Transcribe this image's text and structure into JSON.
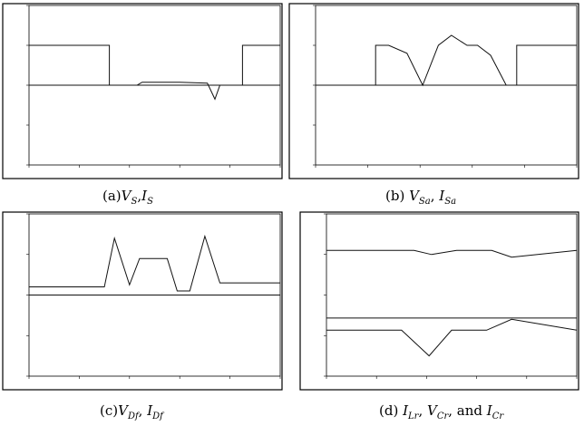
{
  "figure": {
    "captions": {
      "a": {
        "prefix": "(a)",
        "v": "V",
        "v_sub": "S",
        "sep": ",",
        "i": "I",
        "i_sub": "S"
      },
      "b": {
        "prefix": "(b)  ",
        "v": "V",
        "v_sub": "Sa",
        "sep": ",  ",
        "i": "I",
        "i_sub": "Sa"
      },
      "c": {
        "prefix": "(c)",
        "v": "V",
        "v_sub": "Df",
        "sep": ",  ",
        "i": "I",
        "i_sub": "Df"
      },
      "d": {
        "prefix": "(d)  ",
        "i1": "I",
        "i1_sub": "Lr",
        "sep1": ",  ",
        "v": "V",
        "v_sub": "Cr",
        "sep2": ",  and  ",
        "i2": "I",
        "i2_sub": "Cr"
      }
    },
    "colors": {
      "frame": "#000000",
      "trace": "#111111",
      "background": "#ffffff"
    }
  },
  "chart_data": [
    {
      "type": "line",
      "panel": "a",
      "x_range": [
        0,
        10
      ],
      "y_range": [
        -4,
        4
      ],
      "grid": false,
      "series": [
        {
          "values": [
            [
              0,
              2
            ],
            [
              3.2,
              2
            ],
            [
              3.2,
              0
            ],
            [
              8.5,
              0
            ],
            [
              8.5,
              2
            ],
            [
              10,
              2
            ]
          ]
        },
        {
          "values": [
            [
              0,
              0
            ],
            [
              4.3,
              0
            ],
            [
              4.5,
              0.15
            ],
            [
              6.0,
              0.15
            ],
            [
              7.1,
              0.1
            ],
            [
              7.4,
              -0.7
            ],
            [
              7.6,
              0
            ],
            [
              10,
              0
            ]
          ]
        }
      ]
    },
    {
      "type": "line",
      "panel": "b",
      "x_range": [
        0,
        10
      ],
      "y_range": [
        -4,
        4
      ],
      "grid": false,
      "series": [
        {
          "values": [
            [
              0,
              0
            ],
            [
              2.3,
              0
            ],
            [
              2.3,
              2
            ],
            [
              2.8,
              2
            ],
            [
              3.5,
              1.6
            ],
            [
              4.1,
              0
            ],
            [
              4.7,
              2
            ],
            [
              5.2,
              2.5
            ],
            [
              5.8,
              2
            ],
            [
              6.2,
              2
            ],
            [
              6.7,
              1.5
            ],
            [
              7.3,
              0
            ],
            [
              7.7,
              0
            ],
            [
              7.7,
              2
            ],
            [
              10,
              2
            ]
          ]
        },
        {
          "values": [
            [
              0,
              0
            ],
            [
              10,
              0
            ]
          ]
        }
      ]
    },
    {
      "type": "line",
      "panel": "c",
      "x_range": [
        0,
        10
      ],
      "y_range": [
        -4,
        4
      ],
      "grid": false,
      "series": [
        {
          "values": [
            [
              0,
              0.4
            ],
            [
              2.3,
              0.4
            ],
            [
              3.0,
              0.4
            ],
            [
              3.4,
              2.8
            ],
            [
              4.0,
              0.5
            ],
            [
              4.4,
              1.8
            ],
            [
              5.5,
              1.8
            ],
            [
              5.9,
              0.2
            ],
            [
              6.4,
              0.2
            ],
            [
              7.0,
              2.9
            ],
            [
              7.6,
              0.6
            ],
            [
              10,
              0.6
            ]
          ]
        },
        {
          "values": [
            [
              0,
              0
            ],
            [
              10,
              0
            ]
          ]
        }
      ]
    },
    {
      "type": "line",
      "panel": "d",
      "x_range": [
        0,
        10
      ],
      "y_range": [
        -6,
        6
      ],
      "grid": false,
      "series": [
        {
          "values": [
            [
              0,
              3.3
            ],
            [
              3.5,
              3.3
            ],
            [
              4.2,
              3.0
            ],
            [
              5.2,
              3.3
            ],
            [
              6.6,
              3.3
            ],
            [
              7.4,
              2.8
            ],
            [
              10,
              3.3
            ]
          ]
        },
        {
          "values": [
            [
              0,
              -1.7
            ],
            [
              10,
              -1.7
            ]
          ]
        },
        {
          "values": [
            [
              0,
              -2.6
            ],
            [
              3.0,
              -2.6
            ],
            [
              4.1,
              -4.5
            ],
            [
              5.0,
              -2.6
            ],
            [
              6.4,
              -2.6
            ],
            [
              7.4,
              -1.8
            ],
            [
              10,
              -2.6
            ]
          ]
        }
      ]
    }
  ]
}
